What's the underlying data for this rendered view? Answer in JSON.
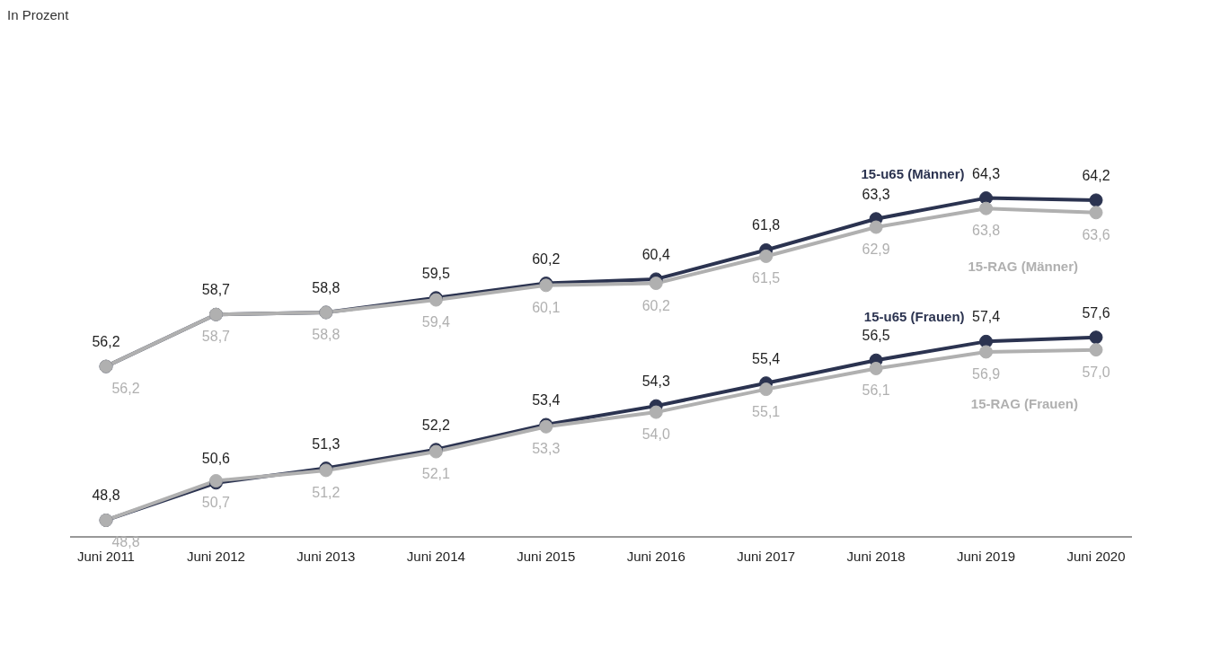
{
  "chart_data": {
    "type": "line",
    "annotations": [
      "In Prozent"
    ],
    "categories": [
      "Juni 2011",
      "Juni 2012",
      "Juni 2013",
      "Juni 2014",
      "Juni 2015",
      "Juni 2016",
      "Juni 2017",
      "Juni 2018",
      "Juni 2019",
      "Juni 2020"
    ],
    "series": [
      {
        "name": "15-u65 (Männer)",
        "color": "#2b3350",
        "values": [
          56.2,
          58.7,
          58.8,
          59.5,
          60.2,
          60.4,
          61.8,
          63.3,
          64.3,
          64.2
        ],
        "value_labels": [
          "56,2",
          "58,7",
          "58,8",
          "59,5",
          "60,2",
          "60,4",
          "61,8",
          "63,3",
          "64,3",
          "64,2"
        ]
      },
      {
        "name": "15-RAG (Männer)",
        "color": "#b0b0b0",
        "values": [
          56.2,
          58.7,
          58.8,
          59.4,
          60.1,
          60.2,
          61.5,
          62.9,
          63.8,
          63.6
        ],
        "value_labels": [
          "56,2",
          "58,7",
          "58,8",
          "59,4",
          "60,1",
          "60,2",
          "61,5",
          "62,9",
          "63,8",
          "63,6"
        ]
      },
      {
        "name": "15-u65 (Frauen)",
        "color": "#2b3350",
        "values": [
          48.8,
          50.6,
          51.3,
          52.2,
          53.4,
          54.3,
          55.4,
          56.5,
          57.4,
          57.6
        ],
        "value_labels": [
          "48,8",
          "50,6",
          "51,3",
          "52,2",
          "53,4",
          "54,3",
          "55,4",
          "56,5",
          "57,4",
          "57,6"
        ]
      },
      {
        "name": "15-RAG (Frauen)",
        "color": "#b0b0b0",
        "values": [
          48.8,
          50.7,
          51.2,
          52.1,
          53.3,
          54.0,
          55.1,
          56.1,
          56.9,
          57.0
        ],
        "value_labels": [
          "48,8",
          "50,7",
          "51,2",
          "52,1",
          "53,3",
          "54,0",
          "55,1",
          "56,1",
          "56,9",
          "57,0"
        ]
      }
    ],
    "legend": false,
    "grid": false,
    "marker": "circle",
    "line_style": "solid"
  }
}
